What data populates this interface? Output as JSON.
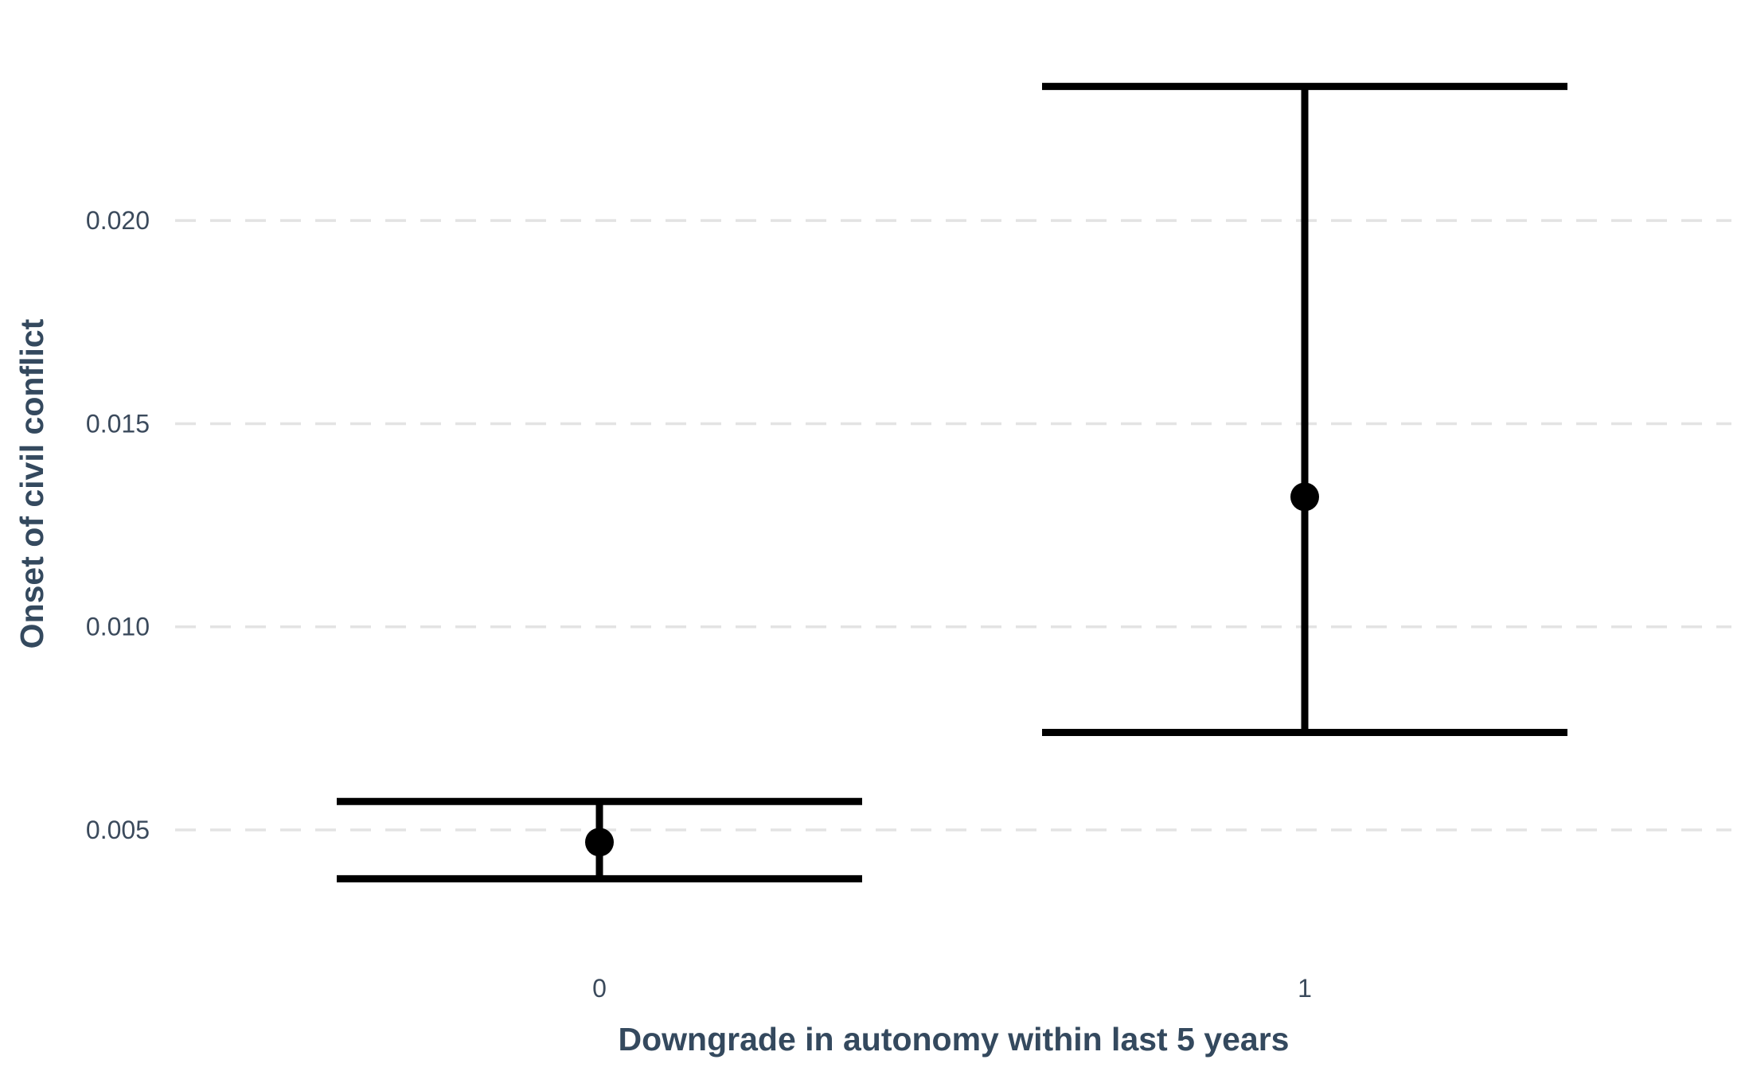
{
  "chart_data": {
    "type": "scatter",
    "subtype": "point-with-error-bars",
    "title": "",
    "xlabel": "Downgrade in autonomy within last 5 years",
    "ylabel": "Onset of civil conflict",
    "categories": [
      "0",
      "1"
    ],
    "series": [
      {
        "values": [
          0.0047,
          0.0132
        ],
        "lower": [
          0.0038,
          0.0074
        ],
        "upper": [
          0.0057,
          0.0233
        ]
      }
    ],
    "yticks": [
      0.005,
      0.01,
      0.015,
      0.02
    ],
    "ytick_labels": [
      "0.005",
      "0.010",
      "0.015",
      "0.020"
    ],
    "ylim": [
      0.00222,
      0.02484
    ],
    "grid": "horizontal dashed",
    "legend": "none",
    "colors": {
      "marks": "#000000",
      "grid": "#e3e3e3",
      "text": "#3b4a5c"
    }
  }
}
